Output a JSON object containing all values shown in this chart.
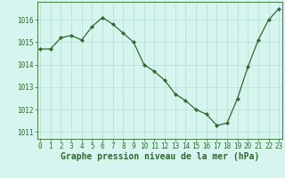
{
  "x": [
    0,
    1,
    2,
    3,
    4,
    5,
    6,
    7,
    8,
    9,
    10,
    11,
    12,
    13,
    14,
    15,
    16,
    17,
    18,
    19,
    20,
    21,
    22,
    23
  ],
  "y": [
    1014.7,
    1014.7,
    1015.2,
    1015.3,
    1015.1,
    1015.7,
    1016.1,
    1015.8,
    1015.4,
    1015.0,
    1014.0,
    1013.7,
    1013.3,
    1012.7,
    1012.4,
    1012.0,
    1011.8,
    1011.3,
    1011.4,
    1012.5,
    1013.9,
    1015.1,
    1016.0,
    1016.5
  ],
  "line_color": "#2d6a2d",
  "marker": "D",
  "marker_size": 2.2,
  "bg_color": "#d7f5ef",
  "grid_color": "#b8e0d8",
  "text_color": "#2d6a2d",
  "xlabel": "Graphe pression niveau de la mer (hPa)",
  "ylim_min": 1010.7,
  "ylim_max": 1016.8,
  "xlim_min": -0.3,
  "xlim_max": 23.3,
  "yticks": [
    1011,
    1012,
    1013,
    1014,
    1015,
    1016
  ],
  "xticks": [
    0,
    1,
    2,
    3,
    4,
    5,
    6,
    7,
    8,
    9,
    10,
    11,
    12,
    13,
    14,
    15,
    16,
    17,
    18,
    19,
    20,
    21,
    22,
    23
  ],
  "tick_fontsize": 5.5,
  "label_fontsize": 7.0,
  "linewidth": 0.9
}
